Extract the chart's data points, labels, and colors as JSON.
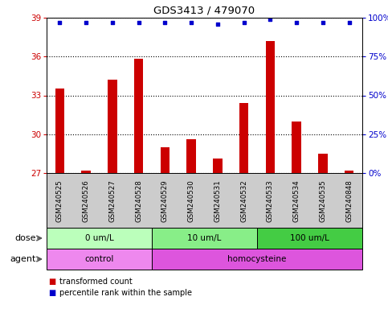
{
  "title": "GDS3413 / 479070",
  "samples": [
    "GSM240525",
    "GSM240526",
    "GSM240527",
    "GSM240528",
    "GSM240529",
    "GSM240530",
    "GSM240531",
    "GSM240532",
    "GSM240533",
    "GSM240534",
    "GSM240535",
    "GSM240848"
  ],
  "bar_values": [
    33.5,
    27.2,
    34.2,
    35.8,
    29.0,
    29.6,
    28.1,
    32.4,
    37.2,
    31.0,
    28.5,
    27.2
  ],
  "percentile_values": [
    97,
    97,
    97,
    97,
    97,
    97,
    96,
    97,
    99,
    97,
    97,
    97
  ],
  "ylim_left": [
    27,
    39
  ],
  "ylim_right": [
    0,
    100
  ],
  "yticks_left": [
    27,
    30,
    33,
    36,
    39
  ],
  "yticks_right": [
    0,
    25,
    50,
    75,
    100
  ],
  "ytick_labels_right": [
    "0%",
    "25%",
    "50%",
    "75%",
    "100%"
  ],
  "bar_color": "#cc0000",
  "dot_color": "#0000cc",
  "grid_color": "#000000",
  "dose_groups": [
    {
      "label": "0 um/L",
      "start": 0,
      "end": 4,
      "color": "#bbffbb"
    },
    {
      "label": "10 um/L",
      "start": 4,
      "end": 8,
      "color": "#88ee88"
    },
    {
      "label": "100 um/L",
      "start": 8,
      "end": 12,
      "color": "#44cc44"
    }
  ],
  "agent_groups": [
    {
      "label": "control",
      "start": 0,
      "end": 4,
      "color": "#ee88ee"
    },
    {
      "label": "homocysteine",
      "start": 4,
      "end": 12,
      "color": "#dd55dd"
    }
  ],
  "legend_bar_label": "transformed count",
  "legend_dot_label": "percentile rank within the sample",
  "xlabel_dose": "dose",
  "xlabel_agent": "agent",
  "title_color": "#000000",
  "left_tick_color": "#cc0000",
  "right_tick_color": "#0000cc",
  "xtick_bg_color": "#cccccc",
  "fig_width": 4.83,
  "fig_height": 3.84,
  "fig_dpi": 100
}
